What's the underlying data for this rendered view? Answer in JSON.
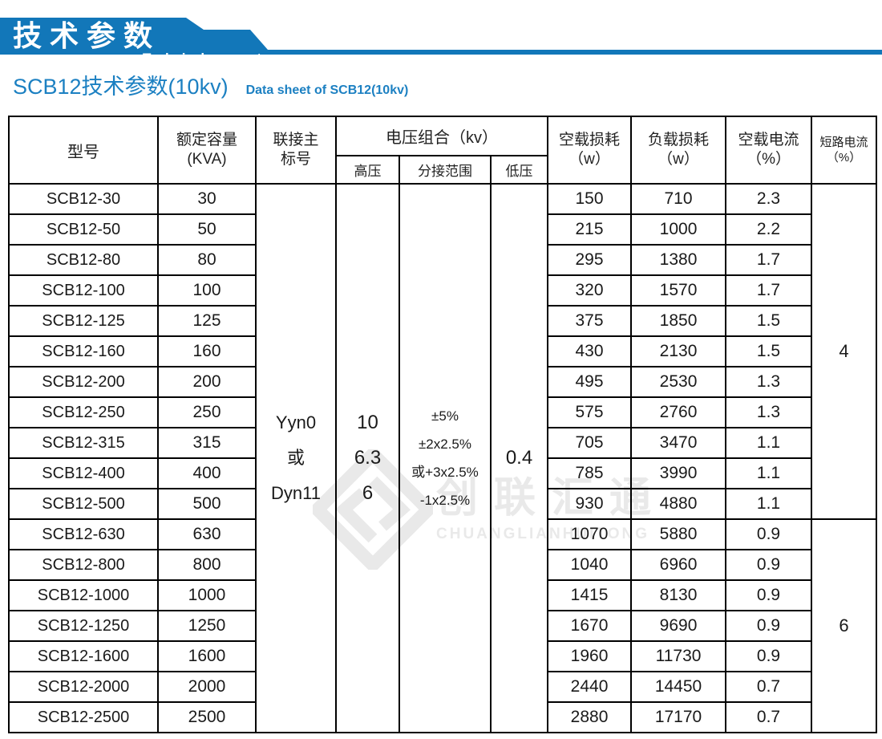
{
  "banner": {
    "title_cn": "技术参数",
    "title_en": "Technical parameter",
    "bg_color": "#1277b9"
  },
  "subtitle": {
    "cn": "SCB12技术参数(10kv)",
    "en": "Data sheet of SCB12(10kv)",
    "color": "#1c80c2"
  },
  "watermark": {
    "cn": "创联汇通",
    "en": "CHUANGLIANHUITONG",
    "logo": "diamond-interlock-icon"
  },
  "table": {
    "header_bg": "#a9ddf5",
    "header": {
      "model": "型号",
      "capacity_l1": "额定容量",
      "capacity_l2": "(KVA)",
      "connection_l1": "联接主",
      "connection_l2": "标号",
      "voltage_group": "电压组合（kv）",
      "hv": "高压",
      "tap": "分接范围",
      "lv": "低压",
      "noload_loss_l1": "空载损耗",
      "noload_loss_l2": "（w）",
      "load_loss_l1": "负载损耗",
      "load_loss_l2": "（w）",
      "noload_current_l1": "空载电流",
      "noload_current_l2": "（%）",
      "sc_current_l1": "短路电流",
      "sc_current_l2": "（%）"
    },
    "merged": {
      "connection_lines": [
        "Yyn0",
        "或",
        "Dyn11"
      ],
      "hv_lines": [
        "10",
        "6.3",
        "6"
      ],
      "tap_lines": [
        "±5%",
        "±2x2.5%",
        "或+3x2.5%",
        "-1x2.5%"
      ],
      "lv": "0.4"
    },
    "short_circuit_groups": [
      {
        "value": "4",
        "rows": 11
      },
      {
        "value": "6",
        "rows": 7
      }
    ],
    "rows": [
      {
        "model": "SCB12-30",
        "capacity": "30",
        "noload_loss": "150",
        "load_loss": "710",
        "noload_current": "2.3"
      },
      {
        "model": "SCB12-50",
        "capacity": "50",
        "noload_loss": "215",
        "load_loss": "1000",
        "noload_current": "2.2"
      },
      {
        "model": "SCB12-80",
        "capacity": "80",
        "noload_loss": "295",
        "load_loss": "1380",
        "noload_current": "1.7"
      },
      {
        "model": "SCB12-100",
        "capacity": "100",
        "noload_loss": "320",
        "load_loss": "1570",
        "noload_current": "1.7"
      },
      {
        "model": "SCB12-125",
        "capacity": "125",
        "noload_loss": "375",
        "load_loss": "1850",
        "noload_current": "1.5"
      },
      {
        "model": "SCB12-160",
        "capacity": "160",
        "noload_loss": "430",
        "load_loss": "2130",
        "noload_current": "1.5"
      },
      {
        "model": "SCB12-200",
        "capacity": "200",
        "noload_loss": "495",
        "load_loss": "2530",
        "noload_current": "1.3"
      },
      {
        "model": "SCB12-250",
        "capacity": "250",
        "noload_loss": "575",
        "load_loss": "2760",
        "noload_current": "1.3"
      },
      {
        "model": "SCB12-315",
        "capacity": "315",
        "noload_loss": "705",
        "load_loss": "3470",
        "noload_current": "1.1"
      },
      {
        "model": "SCB12-400",
        "capacity": "400",
        "noload_loss": "785",
        "load_loss": "3990",
        "noload_current": "1.1"
      },
      {
        "model": "SCB12-500",
        "capacity": "500",
        "noload_loss": "930",
        "load_loss": "4880",
        "noload_current": "1.1"
      },
      {
        "model": "SCB12-630",
        "capacity": "630",
        "noload_loss": "1070",
        "load_loss": "5880",
        "noload_current": "0.9"
      },
      {
        "model": "SCB12-800",
        "capacity": "800",
        "noload_loss": "1040",
        "load_loss": "6960",
        "noload_current": "0.9"
      },
      {
        "model": "SCB12-1000",
        "capacity": "1000",
        "noload_loss": "1415",
        "load_loss": "8130",
        "noload_current": "0.9"
      },
      {
        "model": "SCB12-1250",
        "capacity": "1250",
        "noload_loss": "1670",
        "load_loss": "9690",
        "noload_current": "0.9"
      },
      {
        "model": "SCB12-1600",
        "capacity": "1600",
        "noload_loss": "1960",
        "load_loss": "11730",
        "noload_current": "0.9"
      },
      {
        "model": "SCB12-2000",
        "capacity": "2000",
        "noload_loss": "2440",
        "load_loss": "14450",
        "noload_current": "0.7"
      },
      {
        "model": "SCB12-2500",
        "capacity": "2500",
        "noload_loss": "2880",
        "load_loss": "17170",
        "noload_current": "0.7"
      }
    ]
  }
}
